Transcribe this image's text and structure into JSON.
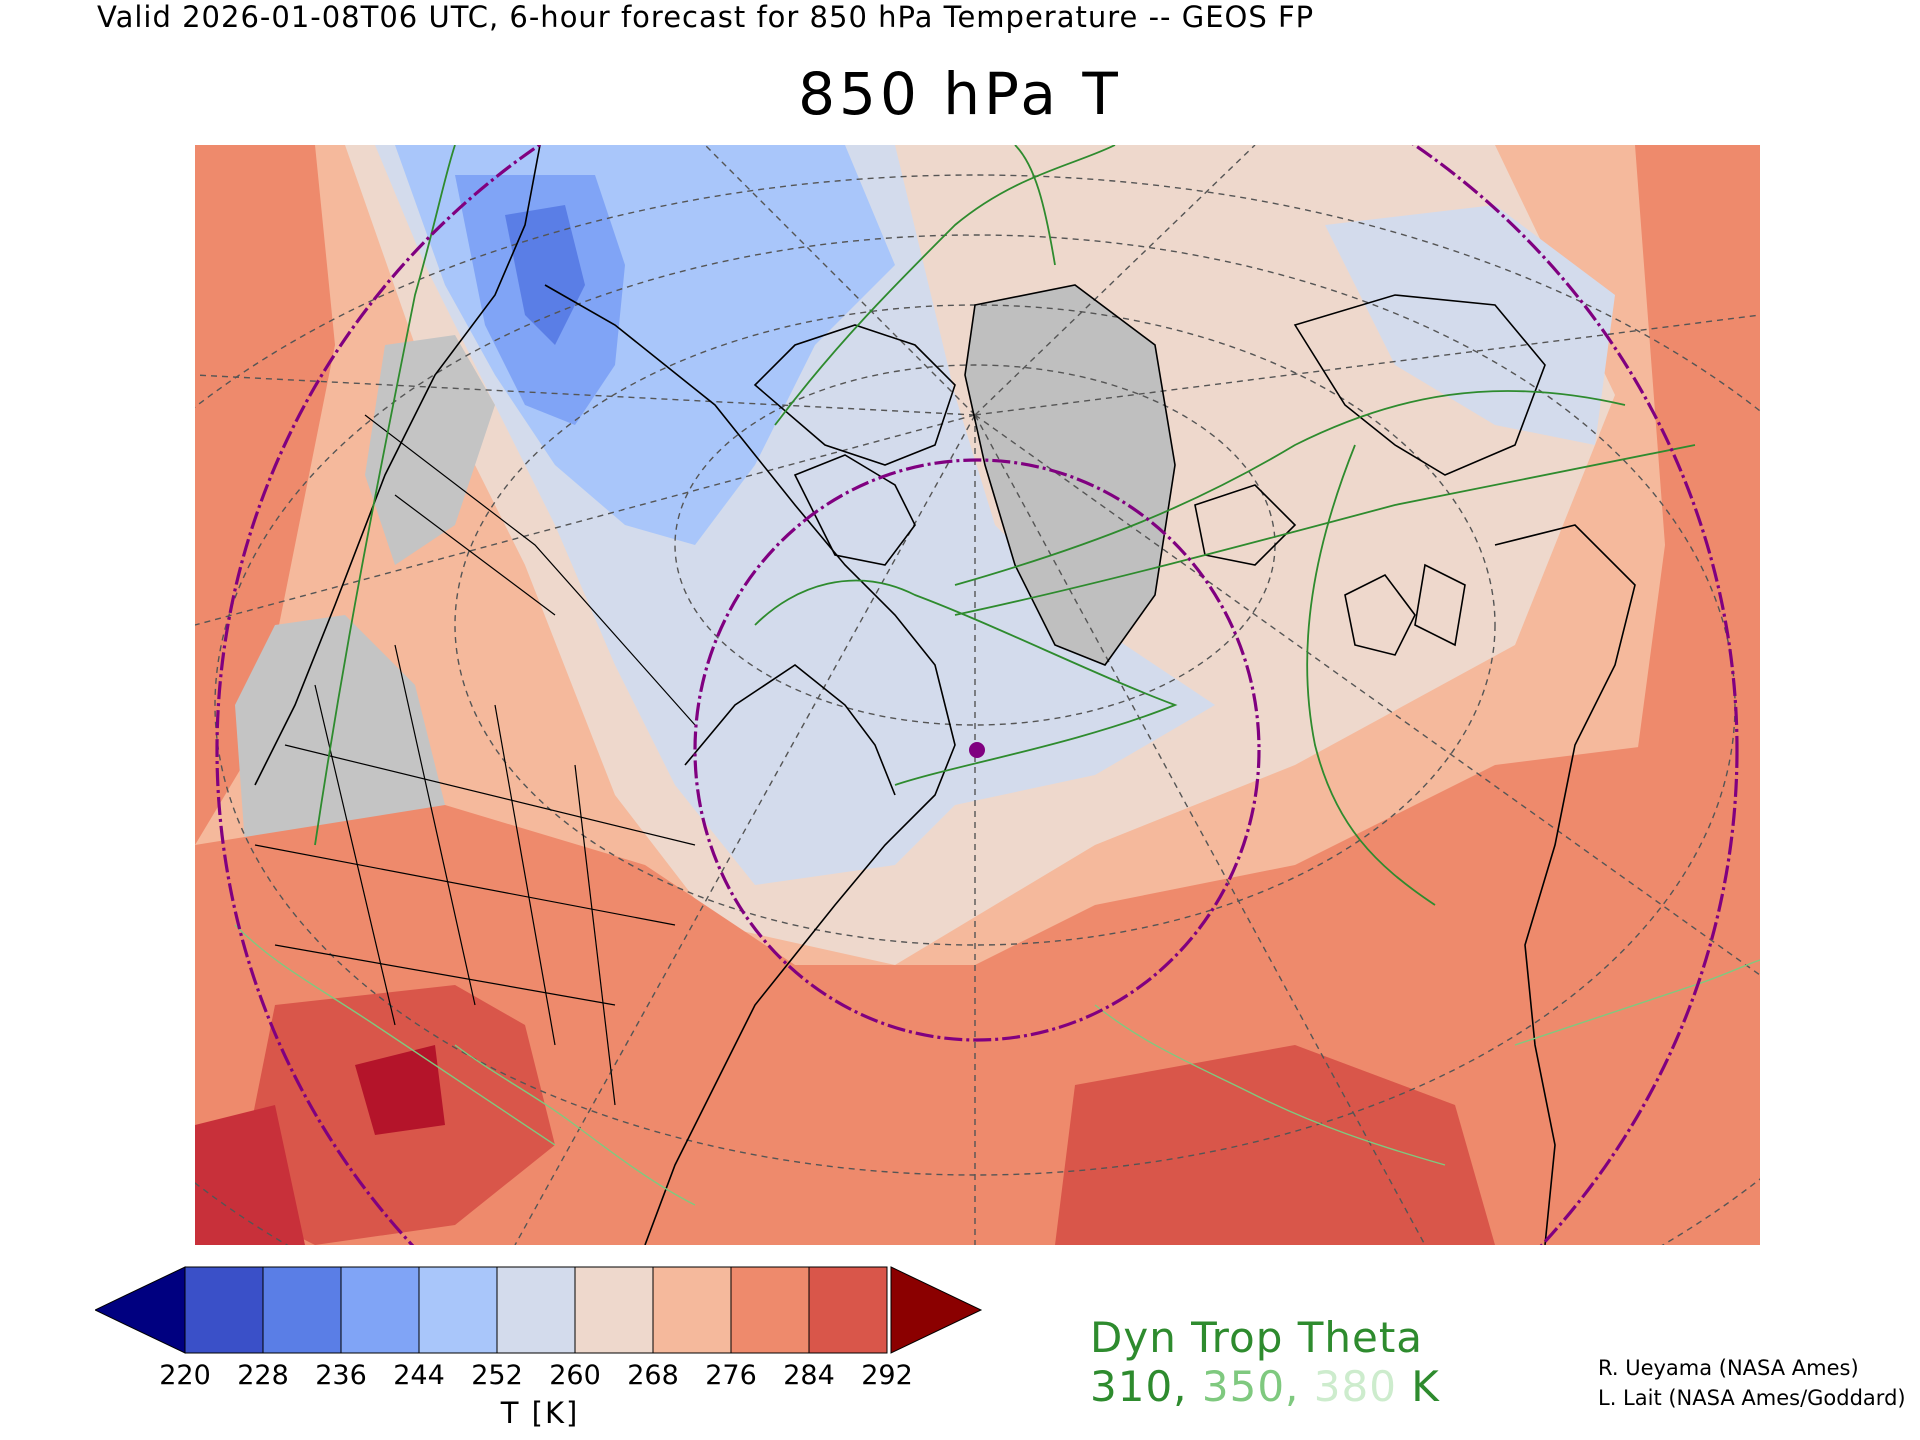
{
  "header": {
    "valid_line": "Valid 2026-01-08T06 UTC, 6-hour forecast for 850 hPa Temperature -- GEOS FP",
    "title": "850 hPa T"
  },
  "map": {
    "projection": "polar stereographic, North America / Arctic",
    "marker_color": "#800080"
  },
  "colorbar": {
    "unit_label": "T [K]",
    "ticks": [
      "220",
      "228",
      "236",
      "244",
      "252",
      "260",
      "268",
      "276",
      "284",
      "292"
    ],
    "colors": [
      "#000080",
      "#3a50c8",
      "#5a7ee6",
      "#80a4f6",
      "#a9c6fa",
      "#d3dbec",
      "#eed8cc",
      "#f5b99c",
      "#ee8a6c",
      "#d9564a",
      "#8b0000"
    ]
  },
  "trop_legend": {
    "label": "Dyn Trop Theta",
    "val_310": "310",
    "sep1": ", ",
    "val_350": "350",
    "sep2": ", ",
    "val_380": "380",
    "unit": " K",
    "colors": [
      "#2e8b2e",
      "#7fc97f",
      "#cdeccd"
    ]
  },
  "credits": {
    "line1": "R. Ueyama (NASA Ames)",
    "line2": "L. Lait (NASA Ames/Goddard)"
  }
}
